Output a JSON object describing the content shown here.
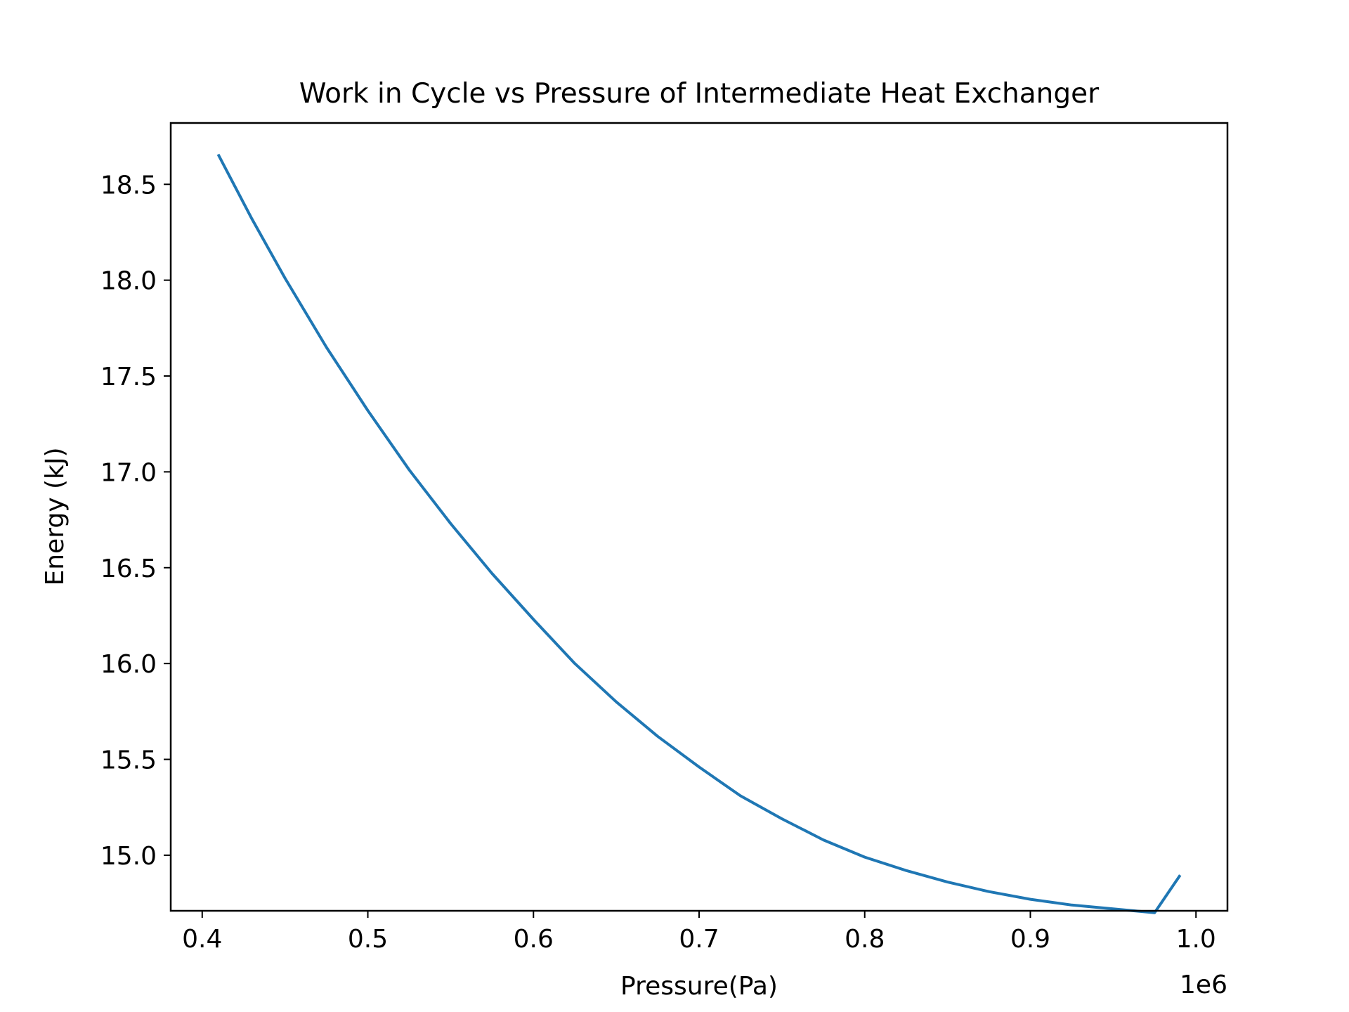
{
  "chart_data": {
    "type": "line",
    "title": "Work in Cycle vs Pressure of Intermediate Heat Exchanger",
    "xlabel": "Pressure(Pa)",
    "ylabel": "Energy (kJ)",
    "x_offset_label": "1e6",
    "xlim": [
      381000,
      1019000
    ],
    "ylim": [
      14.71,
      18.82
    ],
    "x_ticks": [
      400000,
      500000,
      600000,
      700000,
      800000,
      900000,
      1000000
    ],
    "x_tick_labels": [
      "0.4",
      "0.5",
      "0.6",
      "0.7",
      "0.8",
      "0.9",
      "1.0"
    ],
    "y_ticks": [
      15.0,
      15.5,
      16.0,
      16.5,
      17.0,
      17.5,
      18.0,
      18.5
    ],
    "y_tick_labels": [
      "15.0",
      "15.5",
      "16.0",
      "16.5",
      "17.0",
      "17.5",
      "18.0",
      "18.5"
    ],
    "grid": false,
    "series": [
      {
        "color": "#1f77b4",
        "x": [
          410000,
          430000,
          450000,
          475000,
          500000,
          525000,
          550000,
          575000,
          600000,
          625000,
          650000,
          675000,
          700000,
          725000,
          750000,
          775000,
          800000,
          825000,
          850000,
          875000,
          900000,
          925000,
          950000,
          975000,
          990000
        ],
        "y": [
          18.65,
          18.32,
          18.01,
          17.65,
          17.32,
          17.01,
          16.73,
          16.47,
          16.23,
          16.0,
          15.8,
          15.62,
          15.46,
          15.31,
          15.19,
          15.08,
          14.99,
          14.92,
          14.86,
          14.81,
          14.77,
          14.74,
          14.72,
          14.7,
          14.89
        ]
      }
    ]
  }
}
